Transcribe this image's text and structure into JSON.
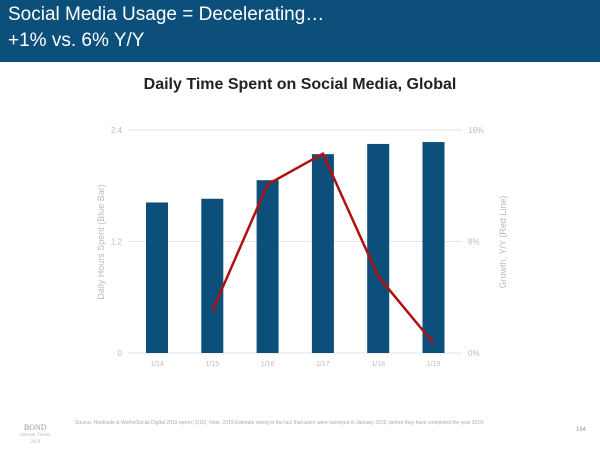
{
  "header": {
    "line1": "Social Media Usage = Decelerating…",
    "line2": "+1% vs. 6% Y/Y"
  },
  "chart_data": {
    "type": "bar",
    "title": "Daily Time Spent on Social Media, Global",
    "categories": [
      "1/14",
      "1/15",
      "1/16",
      "1/17",
      "1/18",
      "1/19"
    ],
    "series": [
      {
        "name": "Daily Hours Spent (Blue Bar)",
        "type": "bar",
        "axis": "left",
        "color": "#0b4f7a",
        "values": [
          1.62,
          1.66,
          1.86,
          2.14,
          2.25,
          2.27
        ]
      },
      {
        "name": "Growth, Y/Y (Red Line)",
        "type": "line",
        "axis": "right",
        "color": "#b01010",
        "values": [
          null,
          3.0,
          12.1,
          14.3,
          5.5,
          0.7
        ]
      }
    ],
    "ylabel": "Daily Hours Spent (Blue Bar)",
    "y2label": "Growth, Y/Y (Red Line)",
    "ylim": [
      0,
      2.4
    ],
    "y2lim": [
      0,
      16
    ],
    "yticks": [
      "0",
      "1.2",
      "2.4"
    ],
    "y2ticks": [
      "0%",
      "8%",
      "16%"
    ],
    "grid": true
  },
  "footer": {
    "source": "Source: Hootsuite & WeAreSocial Digital 2019 report (1/19). Note: 2019 Estimate owing to the fact that users were surveyed in January 2019, before they have completed the year 2019.",
    "brand": "BOND",
    "brand_sub1": "Internet Trends",
    "brand_sub2": "2019",
    "page": "164"
  }
}
